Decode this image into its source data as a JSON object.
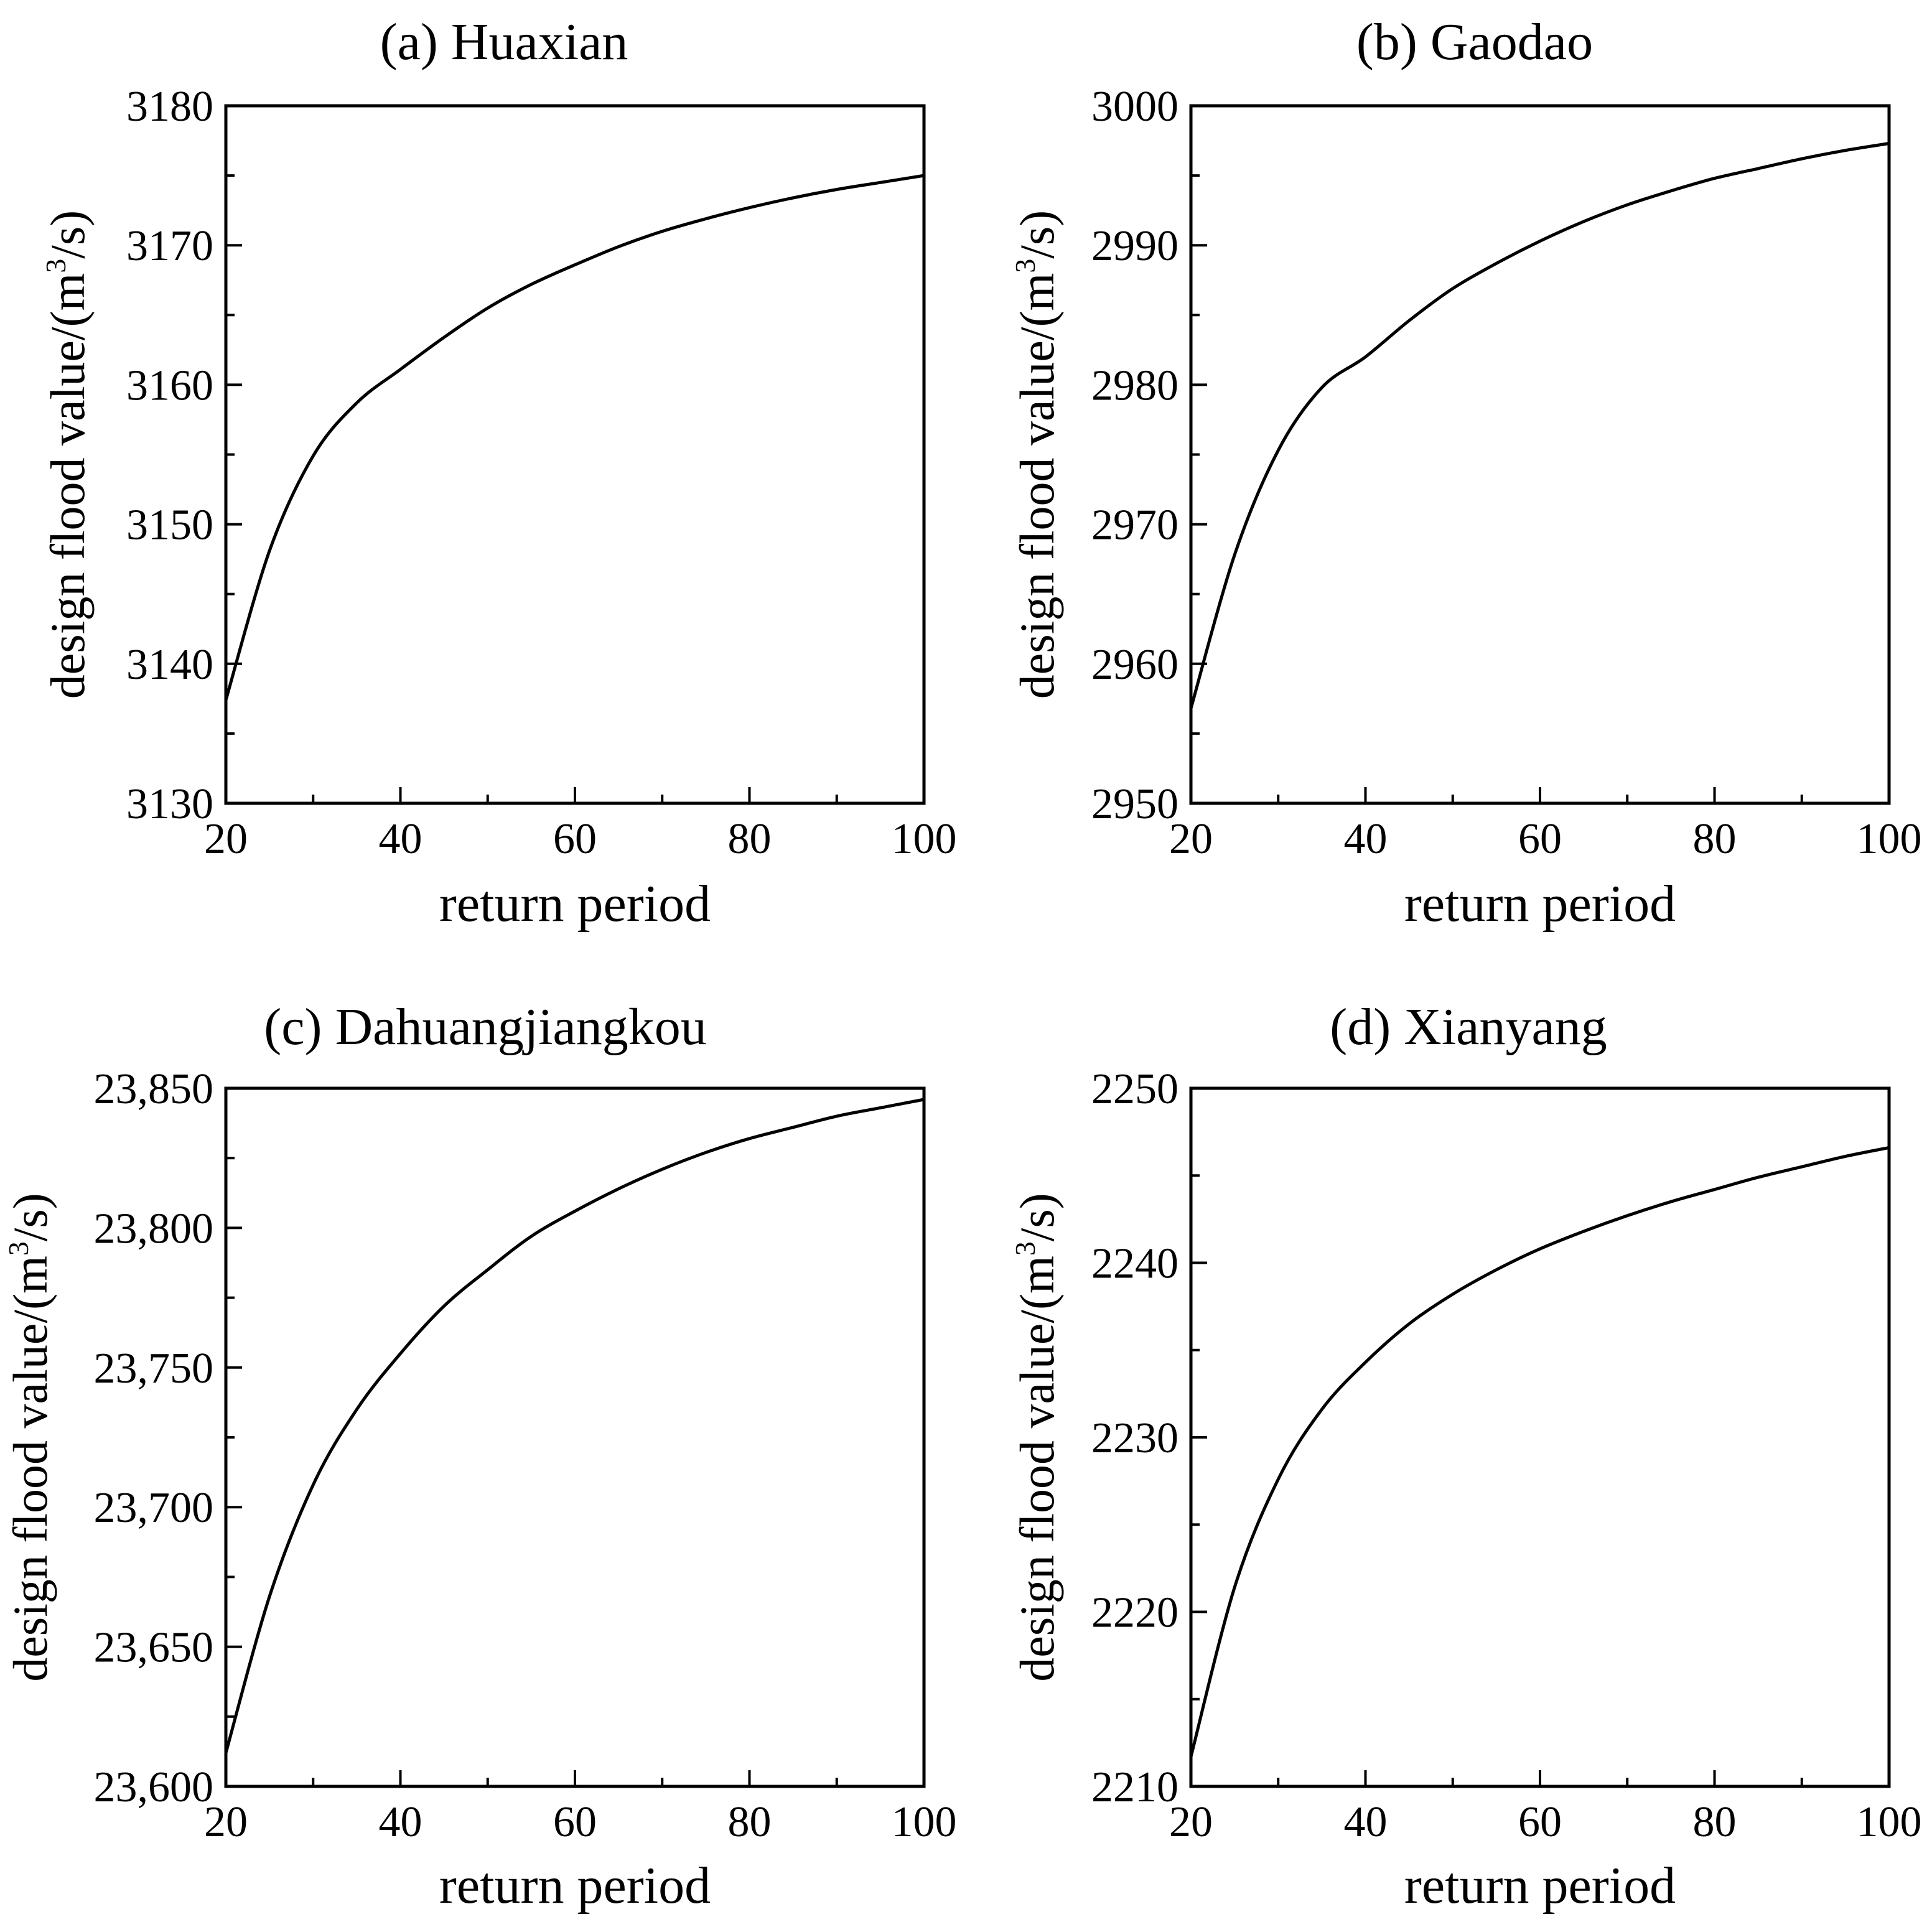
{
  "chart_data": [
    {
      "type": "line",
      "title": "(a) Huaxian",
      "xlabel": "return period",
      "ylabel": "design flood value/(m³/s)",
      "xlim": [
        20,
        100
      ],
      "ylim": [
        3130,
        3180
      ],
      "xticks": [
        "20",
        "40",
        "60",
        "80",
        "100"
      ],
      "yticks": [
        "3130",
        "3140",
        "3150",
        "3160",
        "3170",
        "3180"
      ],
      "x": [
        20,
        25,
        30,
        35,
        40,
        45,
        50,
        55,
        60,
        65,
        70,
        75,
        80,
        85,
        90,
        95,
        100
      ],
      "y": [
        3137.4,
        3148.1,
        3154.9,
        3158.7,
        3161.1,
        3163.4,
        3165.5,
        3167.2,
        3168.6,
        3169.9,
        3171.0,
        3171.9,
        3172.7,
        3173.4,
        3174.0,
        3174.5,
        3175.0
      ]
    },
    {
      "type": "line",
      "title": "(b) Gaodao",
      "xlabel": "return period",
      "ylabel": "design flood value/(m³/s)",
      "xlim": [
        20,
        100
      ],
      "ylim": [
        2950,
        3000
      ],
      "xticks": [
        "20",
        "40",
        "60",
        "80",
        "100"
      ],
      "yticks": [
        "2950",
        "2960",
        "2970",
        "2980",
        "2990",
        "3000"
      ],
      "x": [
        20,
        25,
        30,
        35,
        40,
        45,
        50,
        55,
        60,
        65,
        70,
        75,
        80,
        85,
        90,
        95,
        100
      ],
      "y": [
        2956.8,
        2967.8,
        2975.3,
        2979.8,
        2982.0,
        2984.6,
        2986.9,
        2988.7,
        2990.3,
        2991.7,
        2992.9,
        2993.9,
        2994.8,
        2995.5,
        2996.2,
        2996.8,
        2997.3
      ]
    },
    {
      "type": "line",
      "title": "(c) Dahuangjiangkou",
      "xlabel": "return period",
      "ylabel": "design flood value/(m³/s)",
      "xlim": [
        20,
        100
      ],
      "ylim": [
        23600,
        23850
      ],
      "xticks": [
        "20",
        "40",
        "60",
        "80",
        "100"
      ],
      "yticks": [
        "23,600",
        "23,650",
        "23,700",
        "23,750",
        "23,800",
        "23,850"
      ],
      "x": [
        20,
        25,
        30,
        35,
        40,
        45,
        50,
        55,
        60,
        65,
        70,
        75,
        80,
        85,
        90,
        95,
        100
      ],
      "y": [
        23612,
        23668,
        23708,
        23735,
        23755,
        23772,
        23785,
        23797,
        23806,
        23814,
        23821,
        23827,
        23832,
        23836,
        23840,
        23843,
        23846
      ]
    },
    {
      "type": "line",
      "title": "(d) Xianyang",
      "xlabel": "return period",
      "ylabel": "design flood value/(m³/s)",
      "xlim": [
        20,
        100
      ],
      "ylim": [
        2210,
        2250
      ],
      "xticks": [
        "20",
        "40",
        "60",
        "80",
        "100"
      ],
      "yticks": [
        "2210",
        "2220",
        "2230",
        "2240",
        "2250"
      ],
      "x": [
        20,
        25,
        30,
        35,
        40,
        45,
        50,
        55,
        60,
        65,
        70,
        75,
        80,
        85,
        90,
        95,
        100
      ],
      "y": [
        2211.7,
        2221.4,
        2227.6,
        2231.6,
        2234.3,
        2236.5,
        2238.2,
        2239.6,
        2240.8,
        2241.8,
        2242.7,
        2243.5,
        2244.2,
        2244.9,
        2245.5,
        2246.1,
        2246.6
      ]
    }
  ]
}
